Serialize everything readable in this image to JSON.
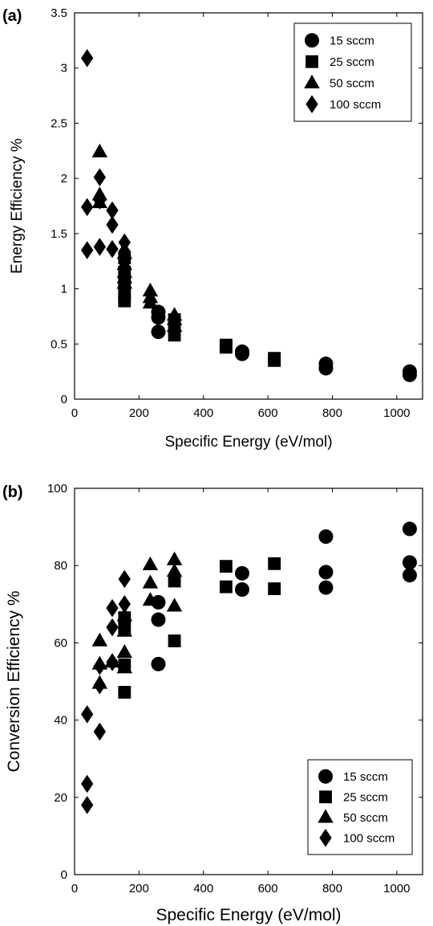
{
  "chart_data": [
    {
      "type": "scatter",
      "panel_label": "(a)",
      "xlabel": "Specific Energy (eV/mol)",
      "ylabel": "Energy Efficiency %",
      "xlim": [
        0,
        1080
      ],
      "ylim": [
        0,
        3.5
      ],
      "xticks": [
        0,
        200,
        400,
        600,
        800,
        1000
      ],
      "yticks": [
        0,
        0.5,
        1,
        1.5,
        2,
        2.5,
        3,
        3.5
      ],
      "ytick_labels": [
        "0",
        "0.5",
        "1",
        "1.5",
        "2",
        "2.5",
        "3",
        "3.5"
      ],
      "legend_position": "top-right",
      "series": [
        {
          "name": "15 sccm",
          "marker": "circle",
          "x": [
            260,
            260,
            260,
            520,
            520,
            780,
            780,
            1040,
            1040
          ],
          "y": [
            0.79,
            0.74,
            0.61,
            0.43,
            0.41,
            0.32,
            0.28,
            0.25,
            0.22
          ]
        },
        {
          "name": "25 sccm",
          "marker": "square",
          "x": [
            155,
            155,
            155,
            155,
            155,
            310,
            310,
            310,
            470,
            470,
            620,
            620
          ],
          "y": [
            1.28,
            1.15,
            1.06,
            0.95,
            0.89,
            0.72,
            0.64,
            0.58,
            0.49,
            0.47,
            0.37,
            0.35
          ]
        },
        {
          "name": "50 sccm",
          "marker": "triangle",
          "x": [
            78,
            78,
            78,
            155,
            155,
            155,
            155,
            155,
            235,
            235,
            235,
            310,
            310,
            310
          ],
          "y": [
            2.24,
            1.85,
            1.78,
            1.32,
            1.22,
            1.15,
            1.1,
            1.05,
            0.98,
            0.92,
            0.87,
            0.76,
            0.72,
            0.66
          ]
        },
        {
          "name": "100 sccm",
          "marker": "diamond",
          "x": [
            39,
            39,
            39,
            78,
            78,
            78,
            117,
            117,
            117,
            155,
            155
          ],
          "y": [
            3.09,
            1.74,
            1.35,
            2.01,
            1.8,
            1.38,
            1.71,
            1.58,
            1.36,
            1.42,
            1.34
          ]
        }
      ]
    },
    {
      "type": "scatter",
      "panel_label": "(b)",
      "xlabel": "Specific Energy (eV/mol)",
      "ylabel": "Conversion Efficiency %",
      "xlim": [
        0,
        1080
      ],
      "ylim": [
        0,
        100
      ],
      "xticks": [
        0,
        200,
        400,
        600,
        800,
        1000
      ],
      "yticks": [
        0,
        20,
        40,
        60,
        80,
        100
      ],
      "ytick_labels": [
        "0",
        "20",
        "40",
        "60",
        "80",
        "100"
      ],
      "legend_position": "bottom-right",
      "series": [
        {
          "name": "15 sccm",
          "marker": "circle",
          "x": [
            260,
            260,
            260,
            520,
            520,
            780,
            780,
            780,
            1040,
            1040,
            1040
          ],
          "y": [
            70.5,
            66,
            54.5,
            78,
            73.8,
            87.5,
            78.3,
            74.3,
            89.5,
            80.8,
            77.5
          ]
        },
        {
          "name": "25 sccm",
          "marker": "square",
          "x": [
            155,
            155,
            155,
            155,
            310,
            310,
            470,
            470,
            620,
            620
          ],
          "y": [
            66.5,
            63.8,
            54.3,
            47.2,
            76,
            60.5,
            79.8,
            74.5,
            80.5,
            74
          ]
        },
        {
          "name": "50 sccm",
          "marker": "triangle",
          "x": [
            78,
            78,
            78,
            117,
            155,
            155,
            155,
            155,
            235,
            235,
            235,
            310,
            310,
            310
          ],
          "y": [
            60.5,
            54.5,
            49.5,
            55,
            67,
            63,
            57.5,
            53.5,
            80.2,
            75.5,
            71,
            81.5,
            78.5,
            69.5
          ]
        },
        {
          "name": "100 sccm",
          "marker": "diamond",
          "x": [
            39,
            39,
            39,
            78,
            78,
            78,
            117,
            117,
            117,
            155,
            155,
            155
          ],
          "y": [
            41.5,
            23.5,
            18,
            54,
            49,
            37,
            69,
            64,
            55,
            76.5,
            70,
            65
          ]
        }
      ]
    }
  ]
}
